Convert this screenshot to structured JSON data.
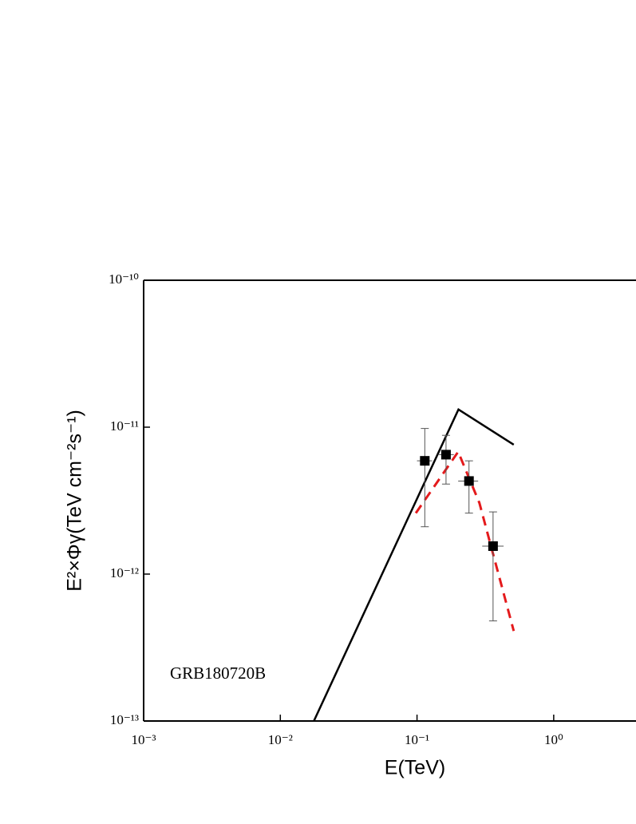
{
  "chart_data": {
    "type": "line",
    "xlabel": "E(TeV)",
    "ylabel": "E²×Φγ(TeV cm⁻²s⁻¹)",
    "annotation": "GRB180720B",
    "log_x": true,
    "log_y": true,
    "xlim": [
      0.001,
      4
    ],
    "ylim": [
      1e-13,
      1e-10
    ],
    "xticks": [
      {
        "value": 0.001,
        "label": "10⁻³"
      },
      {
        "value": 0.01,
        "label": "10⁻²"
      },
      {
        "value": 0.1,
        "label": "10⁻¹"
      },
      {
        "value": 1,
        "label": "10⁰"
      }
    ],
    "yticks": [
      {
        "value": 1e-13,
        "label": "10⁻¹³"
      },
      {
        "value": 1e-12,
        "label": "10⁻¹²"
      },
      {
        "value": 1e-11,
        "label": "10⁻¹¹"
      },
      {
        "value": 1e-10,
        "label": "10⁻¹⁰"
      }
    ],
    "series": [
      {
        "mode": "line",
        "color": "#000000",
        "dash": false,
        "x": [
          0.0176,
          0.201,
          0.51
        ],
        "values": [
          1e-13,
          1.32e-11,
          7.6e-12
        ]
      },
      {
        "mode": "line",
        "color": "#e41a1c",
        "dash": true,
        "x": [
          0.098,
          0.2,
          0.286,
          0.51
        ],
        "values": [
          2.6e-12,
          6.8e-12,
          3.05e-12,
          4.1e-13
        ]
      },
      {
        "mode": "markers",
        "color": "#000000",
        "x": [
          0.114,
          0.163,
          0.24,
          0.36
        ],
        "values": [
          5.9e-12,
          6.5e-12,
          4.3e-12,
          1.55e-12
        ],
        "x_low": [
          0.1,
          0.142,
          0.2,
          0.3
        ],
        "x_high": [
          0.129,
          0.186,
          0.28,
          0.43
        ],
        "y_low": [
          2.1e-12,
          4.1e-12,
          2.6e-12,
          4.8e-13
        ],
        "y_high": [
          9.8e-12,
          8.8e-12,
          5.9e-12,
          2.65e-12
        ]
      }
    ]
  }
}
